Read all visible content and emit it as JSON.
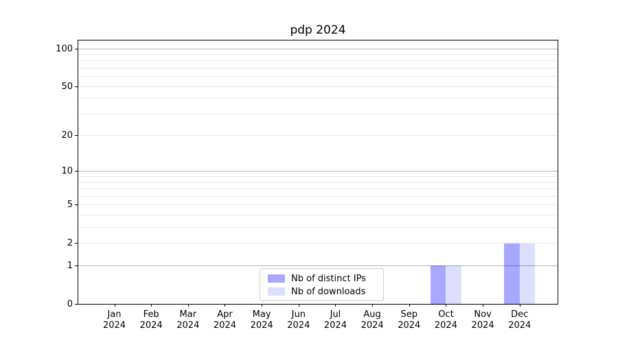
{
  "chart_data": {
    "type": "bar",
    "title": "pdp 2024",
    "categories": [
      "Jan 2024",
      "Feb 2024",
      "Mar 2024",
      "Apr 2024",
      "May 2024",
      "Jun 2024",
      "Jul 2024",
      "Aug 2024",
      "Sep 2024",
      "Oct 2024",
      "Nov 2024",
      "Dec 2024"
    ],
    "series": [
      {
        "name": "Nb of distinct IPs",
        "color": "#0000ff",
        "alpha": 0.34,
        "values": [
          0,
          0,
          0,
          0,
          0,
          0,
          0,
          0,
          0,
          1,
          0,
          2
        ]
      },
      {
        "name": "Nb of downloads",
        "color": "#0000ff",
        "alpha": 0.13,
        "values": [
          0,
          0,
          0,
          0,
          0,
          0,
          0,
          0,
          0,
          1,
          0,
          2
        ]
      }
    ],
    "xlabel": "",
    "ylabel": "",
    "yscale": "log1p",
    "ylim": [
      0,
      116.5
    ],
    "y_ticks": [
      0,
      1,
      2,
      5,
      10,
      20,
      50,
      100
    ],
    "y_gridlines_major": [
      1,
      10,
      100
    ],
    "y_gridlines_minor": [
      2,
      3,
      4,
      5,
      6,
      7,
      8,
      9,
      20,
      30,
      40,
      50,
      60,
      70,
      80,
      90
    ],
    "grid": true,
    "legend_position": "lower center",
    "colors": {
      "axis": "#000000",
      "grid_major": "#b4b4b4",
      "grid_minor": "#e9e9e9",
      "legend_border": "#cccccc",
      "text": "#000000",
      "background": "#ffffff"
    }
  }
}
